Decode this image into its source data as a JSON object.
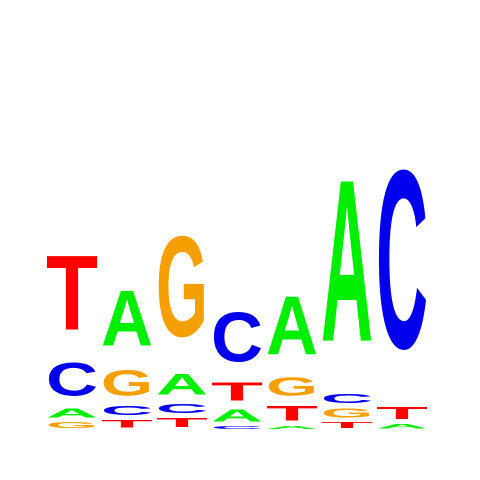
{
  "logo": {
    "colors": {
      "A": "#00ee00",
      "C": "#0000ee",
      "G": "#f5a000",
      "T": "#ff0000"
    },
    "positions": [
      {
        "stack": [
          {
            "letter": "G",
            "height": 0.04
          },
          {
            "letter": "A",
            "height": 0.06
          },
          {
            "letter": "C",
            "height": 0.22
          },
          {
            "letter": "T",
            "height": 0.5
          }
        ]
      },
      {
        "stack": [
          {
            "letter": "T",
            "height": 0.05
          },
          {
            "letter": "C",
            "height": 0.06
          },
          {
            "letter": "G",
            "height": 0.17
          },
          {
            "letter": "A",
            "height": 0.37
          }
        ]
      },
      {
        "stack": [
          {
            "letter": "T",
            "height": 0.06
          },
          {
            "letter": "C",
            "height": 0.06
          },
          {
            "letter": "A",
            "height": 0.14
          },
          {
            "letter": "G",
            "height": 0.67
          }
        ]
      },
      {
        "stack": [
          {
            "letter": "C",
            "height": 0.02
          },
          {
            "letter": "A",
            "height": 0.08
          },
          {
            "letter": "T",
            "height": 0.12
          },
          {
            "letter": "C",
            "height": 0.33
          }
        ]
      },
      {
        "stack": [
          {
            "letter": "A",
            "height": 0.02
          },
          {
            "letter": "T",
            "height": 0.1
          },
          {
            "letter": "G",
            "height": 0.12
          },
          {
            "letter": "A",
            "height": 0.39
          }
        ]
      },
      {
        "stack": [
          {
            "letter": "T",
            "height": 0.04
          },
          {
            "letter": "G",
            "height": 0.06
          },
          {
            "letter": "C",
            "height": 0.06
          },
          {
            "letter": "A",
            "height": 1.08
          }
        ]
      },
      {
        "stack": [
          {
            "letter": "A",
            "height": 0.03
          },
          {
            "letter": "T",
            "height": 0.08
          },
          {
            "letter": "C",
            "height": 1.19
          }
        ]
      }
    ]
  }
}
